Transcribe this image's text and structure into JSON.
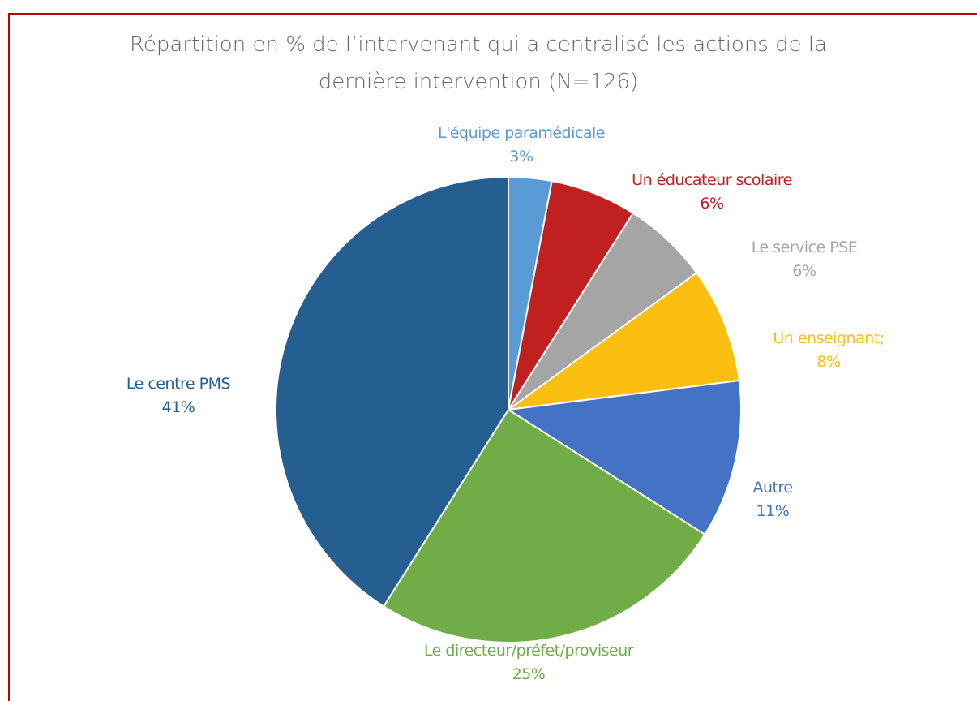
{
  "chart_data": {
    "type": "pie",
    "title": "Répartition en % de l’intervenant qui a centralisé les actions de la dernière intervention (N=126)",
    "categories": [
      "L'équipe paramédicale",
      "Un éducateur scolaire",
      "Le service PSE",
      "Un enseignant;",
      "Autre",
      "Le directeur/préfet/proviseur",
      "Le centre PMS"
    ],
    "values": [
      3,
      6,
      6,
      8,
      11,
      25,
      41
    ],
    "value_labels": [
      "3%",
      "6%",
      "6%",
      "8%",
      "11%",
      "25%",
      "41%"
    ],
    "colors": [
      "#5b9bd5",
      "#c0201f",
      "#a5a5a5",
      "#fbbf12",
      "#4472c4",
      "#70ad47",
      "#255e91"
    ]
  }
}
